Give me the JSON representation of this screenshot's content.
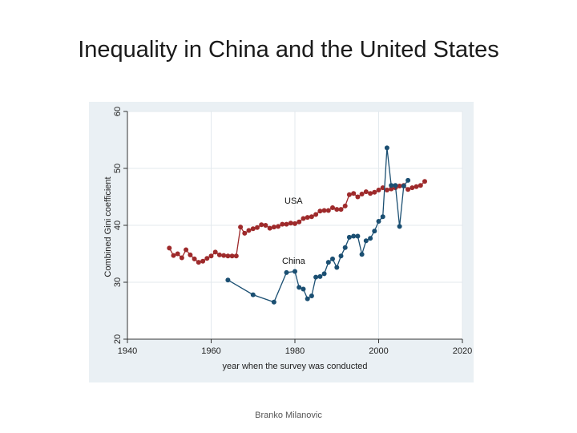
{
  "slide": {
    "title": "Inequality in China and the United States",
    "footer": "Branko Milanovic"
  },
  "chart_data": {
    "type": "line",
    "title": "",
    "xlabel": "year when the survey was conducted",
    "ylabel": "Combined Gini coefficient",
    "xlim": [
      1940,
      2020
    ],
    "ylim": [
      20,
      60
    ],
    "xticks": [
      1940,
      1960,
      1980,
      2000,
      2020
    ],
    "yticks": [
      20,
      30,
      40,
      50,
      60
    ],
    "grid": true,
    "legend": "none",
    "series": [
      {
        "name": "USA",
        "color": "#9e2a2b",
        "points": [
          [
            1950,
            36.0
          ],
          [
            1951,
            34.7
          ],
          [
            1952,
            35.0
          ],
          [
            1953,
            34.3
          ],
          [
            1954,
            35.7
          ],
          [
            1955,
            34.8
          ],
          [
            1956,
            34.1
          ],
          [
            1957,
            33.5
          ],
          [
            1958,
            33.7
          ],
          [
            1959,
            34.2
          ],
          [
            1960,
            34.6
          ],
          [
            1961,
            35.3
          ],
          [
            1962,
            34.8
          ],
          [
            1963,
            34.7
          ],
          [
            1964,
            34.6
          ],
          [
            1965,
            34.6
          ],
          [
            1966,
            34.6
          ],
          [
            1967,
            39.7
          ],
          [
            1968,
            38.6
          ],
          [
            1969,
            39.1
          ],
          [
            1970,
            39.4
          ],
          [
            1971,
            39.6
          ],
          [
            1972,
            40.1
          ],
          [
            1973,
            40.0
          ],
          [
            1974,
            39.5
          ],
          [
            1975,
            39.7
          ],
          [
            1976,
            39.8
          ],
          [
            1977,
            40.2
          ],
          [
            1978,
            40.2
          ],
          [
            1979,
            40.4
          ],
          [
            1980,
            40.3
          ],
          [
            1981,
            40.6
          ],
          [
            1982,
            41.2
          ],
          [
            1983,
            41.4
          ],
          [
            1984,
            41.5
          ],
          [
            1985,
            41.9
          ],
          [
            1986,
            42.5
          ],
          [
            1987,
            42.6
          ],
          [
            1988,
            42.6
          ],
          [
            1989,
            43.1
          ],
          [
            1990,
            42.8
          ],
          [
            1991,
            42.8
          ],
          [
            1992,
            43.4
          ],
          [
            1993,
            45.4
          ],
          [
            1994,
            45.6
          ],
          [
            1995,
            45.0
          ],
          [
            1996,
            45.5
          ],
          [
            1997,
            45.9
          ],
          [
            1998,
            45.6
          ],
          [
            1999,
            45.8
          ],
          [
            2000,
            46.2
          ],
          [
            2001,
            46.6
          ],
          [
            2002,
            46.2
          ],
          [
            2003,
            46.4
          ],
          [
            2004,
            46.6
          ],
          [
            2005,
            46.9
          ],
          [
            2006,
            47.0
          ],
          [
            2007,
            46.3
          ],
          [
            2008,
            46.6
          ],
          [
            2009,
            46.8
          ],
          [
            2010,
            47.0
          ],
          [
            2011,
            47.7
          ]
        ]
      },
      {
        "name": "China",
        "color": "#1b4f72",
        "points": [
          [
            1964,
            30.4
          ],
          [
            1970,
            27.8
          ],
          [
            1975,
            26.5
          ],
          [
            1978,
            31.7
          ],
          [
            1980,
            31.9
          ],
          [
            1981,
            29.1
          ],
          [
            1982,
            28.8
          ],
          [
            1983,
            27.1
          ],
          [
            1984,
            27.6
          ],
          [
            1985,
            30.9
          ],
          [
            1986,
            31.0
          ],
          [
            1987,
            31.5
          ],
          [
            1988,
            33.5
          ],
          [
            1989,
            34.1
          ],
          [
            1990,
            32.6
          ],
          [
            1991,
            34.6
          ],
          [
            1992,
            36.1
          ],
          [
            1993,
            37.9
          ],
          [
            1994,
            38.1
          ],
          [
            1995,
            38.1
          ],
          [
            1996,
            34.9
          ],
          [
            1997,
            37.3
          ],
          [
            1998,
            37.7
          ],
          [
            1999,
            39.0
          ],
          [
            2000,
            40.7
          ],
          [
            2001,
            41.5
          ],
          [
            2002,
            53.6
          ],
          [
            2003,
            47.0
          ],
          [
            2004,
            47.0
          ],
          [
            2005,
            39.8
          ],
          [
            2006,
            46.9
          ],
          [
            2007,
            47.9
          ]
        ]
      }
    ]
  }
}
